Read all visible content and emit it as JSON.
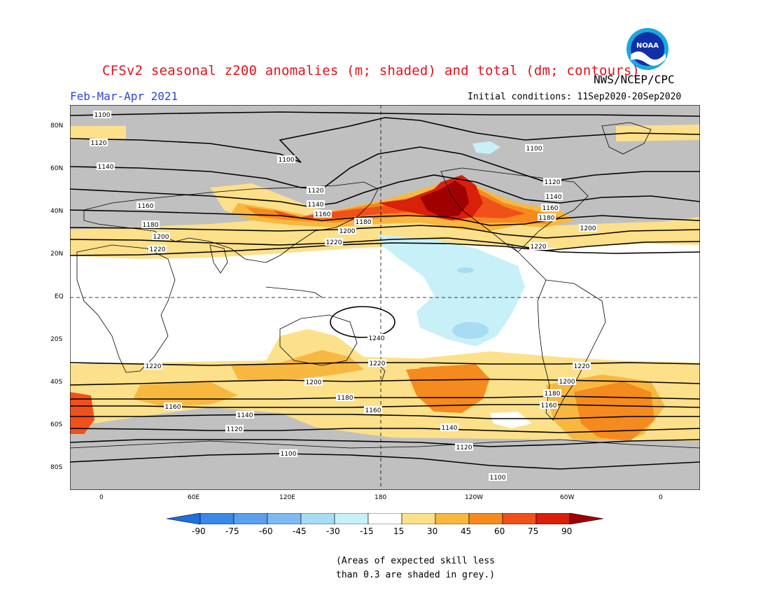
{
  "title": "CFSv2 seasonal z200 anomalies (m; shaded) and total (dm; contours)",
  "org": "NWS/NCEP/CPC",
  "logo_text": "NOAA",
  "period": "Feb-Mar-Apr 2021",
  "initial_conditions": "Initial conditions: 11Sep2020-20Sep2020",
  "lat_labels": [
    "80N",
    "60N",
    "40N",
    "20N",
    "EQ",
    "20S",
    "40S",
    "60S",
    "80S"
  ],
  "lon_labels": [
    "0",
    "60E",
    "120E",
    "180",
    "120W",
    "60W",
    "0"
  ],
  "contour_labels": {
    "c1100": "1100",
    "c1120": "1120",
    "c1140": "1140",
    "c1160": "1160",
    "c1180": "1180",
    "c1200": "1200",
    "c1220": "1220",
    "c1240": "1240"
  },
  "colorbar": {
    "ticks": [
      "-90",
      "-75",
      "-60",
      "-45",
      "-30",
      "-15",
      "15",
      "30",
      "45",
      "60",
      "75",
      "90"
    ],
    "colors": [
      "#1e6fe0",
      "#3a88e8",
      "#5aa0ee",
      "#7dbaf2",
      "#a8dcf4",
      "#c8f0f8",
      "#ffffff",
      "#fde08a",
      "#f8b840",
      "#f58a1e",
      "#f0501a",
      "#d8200a",
      "#a00000"
    ]
  },
  "footnote": {
    "line1": "(Areas of expected skill less",
    "line2": "than 0.3 are shaded in grey.)"
  }
}
